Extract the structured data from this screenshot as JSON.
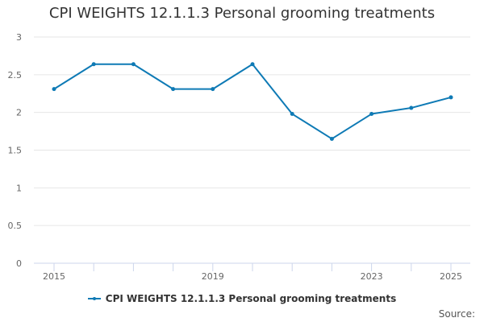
{
  "chart_data": {
    "type": "line",
    "title": "CPI WEIGHTS 12.1.1.3 Personal grooming treatments",
    "xlabel": "",
    "ylabel": "",
    "x": [
      2015,
      2016,
      2017,
      2018,
      2019,
      2020,
      2021,
      2022,
      2023,
      2024,
      2025
    ],
    "series": [
      {
        "name": "CPI WEIGHTS 12.1.1.3 Personal grooming treatments",
        "values": [
          2.31,
          2.64,
          2.64,
          2.31,
          2.31,
          2.64,
          1.98,
          1.65,
          1.98,
          2.06,
          2.2
        ],
        "color": "#0e7ab5"
      }
    ],
    "ylim": [
      0,
      3
    ],
    "yticks": [
      0,
      0.5,
      1,
      1.5,
      2,
      2.5,
      3
    ],
    "xticks": [
      2015,
      2019,
      2023,
      2025
    ],
    "grid": true,
    "legend": "bottom-center"
  },
  "footer": {
    "source_label": "Source:"
  }
}
